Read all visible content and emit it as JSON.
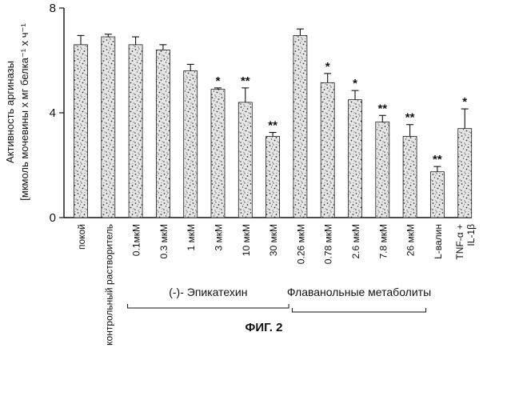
{
  "figure_caption": "ФИГ. 2",
  "chart_data": {
    "type": "bar",
    "ylabel_line1": "Активность аргиназы",
    "ylabel_line2": "[мкмоль мочевины x мг белка⁻¹ x ч⁻¹",
    "ylim": [
      0,
      8
    ],
    "yticks": [
      0,
      4,
      8
    ],
    "categories": [
      "покой",
      "контрольный растворитель",
      "0.1мкМ",
      "0.3 мкМ",
      "1 мкМ",
      "3 мкМ",
      "10 мкМ",
      "30 мкМ",
      "0.26 мкМ",
      "0.78 мкМ",
      "2.6 мкМ",
      "7.8 мкМ",
      "26 мкМ",
      "L-валин",
      "TNF-α + IL-1β"
    ],
    "values": [
      6.6,
      6.9,
      6.6,
      6.4,
      5.6,
      4.9,
      4.4,
      3.1,
      6.95,
      5.15,
      4.5,
      3.65,
      3.1,
      1.75,
      3.4
    ],
    "errors": [
      0.35,
      0.1,
      0.3,
      0.2,
      0.25,
      0.05,
      0.55,
      0.15,
      0.25,
      0.35,
      0.35,
      0.25,
      0.45,
      0.2,
      0.75
    ],
    "significance": [
      "",
      "",
      "",
      "",
      "",
      "*",
      "**",
      "**",
      "",
      "*",
      "*",
      "**",
      "**",
      "**",
      "*"
    ],
    "groups": [
      {
        "label": "(-)- Эпикатехин",
        "from": 2,
        "to": 7
      },
      {
        "label": "Флаванольные  метаболиты",
        "from": 8,
        "to": 12
      }
    ]
  }
}
